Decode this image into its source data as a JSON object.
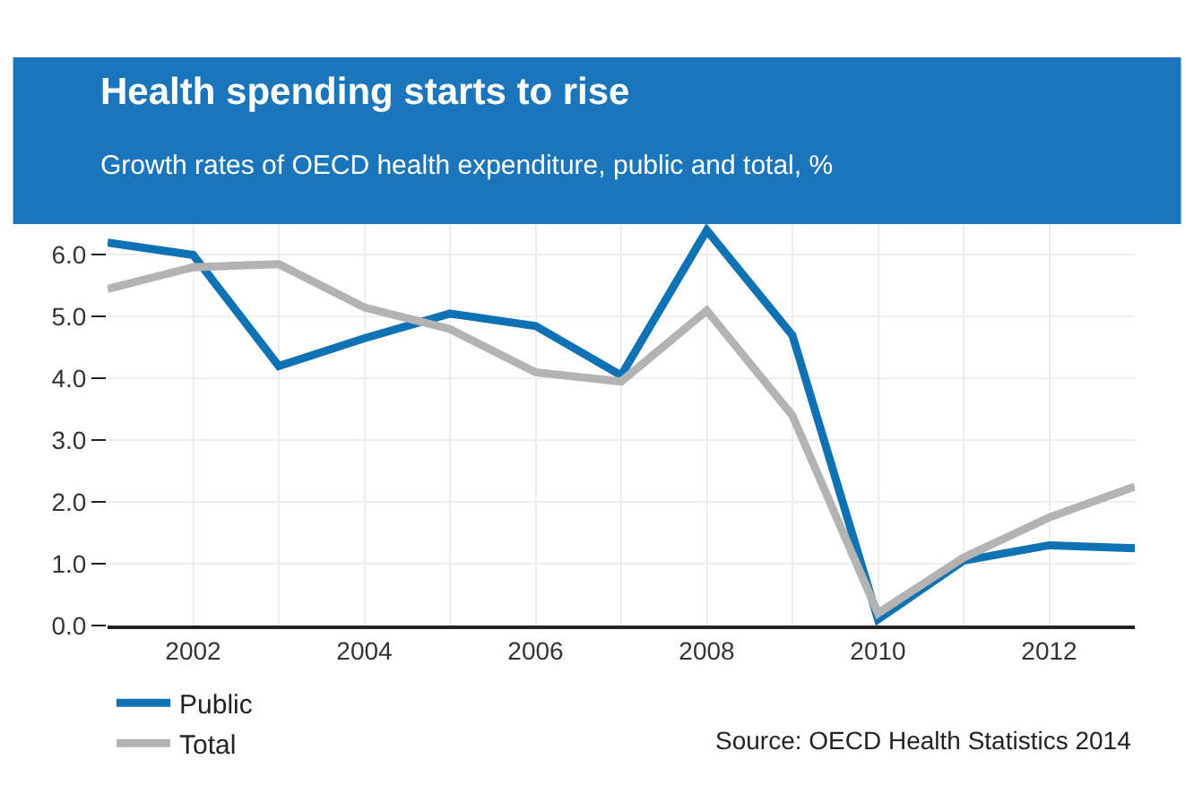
{
  "chart_data": {
    "type": "line",
    "title": "Health spending starts to rise",
    "subtitle": "Growth rates of OECD health expenditure, public and total, %",
    "x": [
      2001,
      2002,
      2003,
      2004,
      2005,
      2006,
      2007,
      2008,
      2009,
      2010,
      2011,
      2012,
      2013
    ],
    "series": [
      {
        "name": "Public",
        "color": "#0e72b5",
        "values": [
          6.2,
          6.0,
          4.2,
          4.65,
          5.05,
          4.85,
          4.05,
          6.4,
          4.7,
          0.1,
          1.05,
          1.3,
          1.25
        ]
      },
      {
        "name": "Total",
        "color": "#b3b3b3",
        "values": [
          5.45,
          5.8,
          5.85,
          5.15,
          4.8,
          4.1,
          3.95,
          5.1,
          3.4,
          0.2,
          1.1,
          1.75,
          2.25
        ]
      }
    ],
    "xlim": [
      2001,
      2013
    ],
    "xticks": [
      2002,
      2004,
      2006,
      2008,
      2010,
      2012
    ],
    "ylim": [
      0,
      6.5
    ],
    "yticks": [
      {
        "value": 0,
        "label": "0.0"
      },
      {
        "value": 1,
        "label": "1.0"
      },
      {
        "value": 2,
        "label": "2.0"
      },
      {
        "value": 3,
        "label": "3.0"
      },
      {
        "value": 4,
        "label": "4.0"
      },
      {
        "value": 5,
        "label": "5.0"
      },
      {
        "value": 6,
        "label": "6.0"
      }
    ],
    "grid": true,
    "legend": "bottom",
    "marker": "none",
    "line_style": "solid",
    "annotations": [
      "Source: OECD Health Statistics 2014"
    ]
  }
}
